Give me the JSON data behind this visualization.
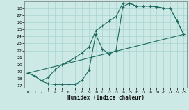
{
  "xlabel": "Humidex (Indice chaleur)",
  "background_color": "#cce9e6",
  "grid_color": "#a8d4d0",
  "line_color": "#1d6b60",
  "xlim": [
    -0.5,
    23.5
  ],
  "ylim": [
    16.7,
    29.0
  ],
  "xticks": [
    0,
    1,
    2,
    3,
    4,
    5,
    6,
    7,
    8,
    9,
    10,
    11,
    12,
    13,
    14,
    15,
    16,
    17,
    18,
    19,
    20,
    21,
    22,
    23
  ],
  "yticks": [
    17,
    18,
    19,
    20,
    21,
    22,
    23,
    24,
    25,
    26,
    27,
    28
  ],
  "curve1_x": [
    0,
    1,
    2,
    3,
    4,
    5,
    6,
    7,
    8,
    9,
    10,
    11,
    12,
    13,
    14,
    15,
    16,
    17,
    18,
    19,
    20,
    21,
    22,
    23
  ],
  "curve1_y": [
    18.8,
    18.4,
    17.7,
    17.3,
    17.2,
    17.2,
    17.2,
    17.2,
    17.8,
    19.2,
    24.3,
    22.2,
    21.5,
    22.0,
    28.2,
    28.7,
    28.3,
    28.3,
    28.3,
    28.2,
    28.0,
    28.0,
    26.2,
    24.3
  ],
  "curve2_x": [
    0,
    1,
    2,
    3,
    4,
    5,
    6,
    7,
    8,
    9,
    10,
    11,
    12,
    13,
    14,
    15,
    16,
    17,
    18,
    19,
    20,
    21,
    22,
    23
  ],
  "curve2_y": [
    18.8,
    18.4,
    17.7,
    18.2,
    19.3,
    20.0,
    20.5,
    21.0,
    21.7,
    22.5,
    24.8,
    25.5,
    26.2,
    26.8,
    28.7,
    28.7,
    28.3,
    28.3,
    28.3,
    28.2,
    28.0,
    28.0,
    26.2,
    24.3
  ],
  "curve3_x": [
    0,
    23
  ],
  "curve3_y": [
    18.8,
    24.3
  ]
}
